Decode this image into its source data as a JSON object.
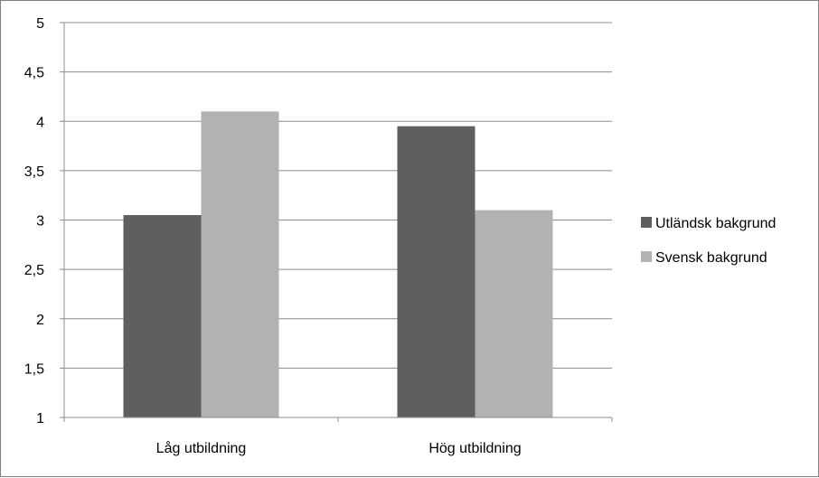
{
  "chart_data": {
    "type": "bar",
    "categories": [
      "Låg utbildning",
      "Hög utbildning"
    ],
    "series": [
      {
        "name": "Utländsk bakgrund",
        "values": [
          3.05,
          3.95
        ],
        "color": "#5f5f5f"
      },
      {
        "name": "Svensk bakgrund",
        "values": [
          4.1,
          3.1
        ],
        "color": "#b2b2b2"
      }
    ],
    "ylim": [
      1,
      5
    ],
    "yticks": [
      {
        "value": 1,
        "label": "1"
      },
      {
        "value": 1.5,
        "label": "1,5"
      },
      {
        "value": 2,
        "label": "2"
      },
      {
        "value": 2.5,
        "label": "2,5"
      },
      {
        "value": 3,
        "label": "3"
      },
      {
        "value": 3.5,
        "label": "3,5"
      },
      {
        "value": 4,
        "label": "4"
      },
      {
        "value": 4.5,
        "label": "4,5"
      },
      {
        "value": 5,
        "label": "5"
      }
    ],
    "grid": true,
    "legend": "right",
    "title": "",
    "xlabel": "",
    "ylabel": ""
  }
}
